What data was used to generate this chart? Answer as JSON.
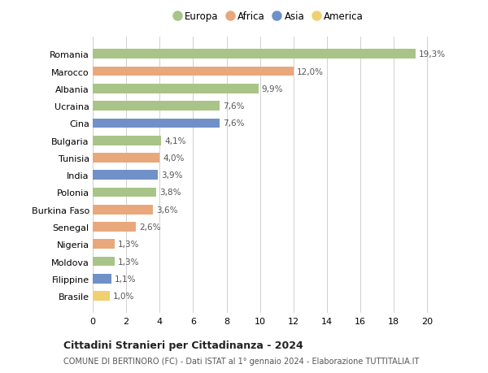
{
  "countries": [
    "Romania",
    "Marocco",
    "Albania",
    "Ucraina",
    "Cina",
    "Bulgaria",
    "Tunisia",
    "India",
    "Polonia",
    "Burkina Faso",
    "Senegal",
    "Nigeria",
    "Moldova",
    "Filippine",
    "Brasile"
  ],
  "values": [
    19.3,
    12.0,
    9.9,
    7.6,
    7.6,
    4.1,
    4.0,
    3.9,
    3.8,
    3.6,
    2.6,
    1.3,
    1.3,
    1.1,
    1.0
  ],
  "labels": [
    "19,3%",
    "12,0%",
    "9,9%",
    "7,6%",
    "7,6%",
    "4,1%",
    "4,0%",
    "3,9%",
    "3,8%",
    "3,6%",
    "2,6%",
    "1,3%",
    "1,3%",
    "1,1%",
    "1,0%"
  ],
  "continents": [
    "Europa",
    "Africa",
    "Europa",
    "Europa",
    "Asia",
    "Europa",
    "Africa",
    "Asia",
    "Europa",
    "Africa",
    "Africa",
    "Africa",
    "Europa",
    "Asia",
    "America"
  ],
  "colors": {
    "Europa": "#a8c488",
    "Africa": "#e8a87c",
    "Asia": "#7090c8",
    "America": "#f0d070"
  },
  "legend_order": [
    "Europa",
    "Africa",
    "Asia",
    "America"
  ],
  "xlim": [
    0,
    21
  ],
  "xticks": [
    0,
    2,
    4,
    6,
    8,
    10,
    12,
    14,
    16,
    18,
    20
  ],
  "title": "Cittadini Stranieri per Cittadinanza - 2024",
  "subtitle": "COMUNE DI BERTINORO (FC) - Dati ISTAT al 1° gennaio 2024 - Elaborazione TUTTITALIA.IT",
  "background_color": "#ffffff",
  "grid_color": "#d0d0d0"
}
